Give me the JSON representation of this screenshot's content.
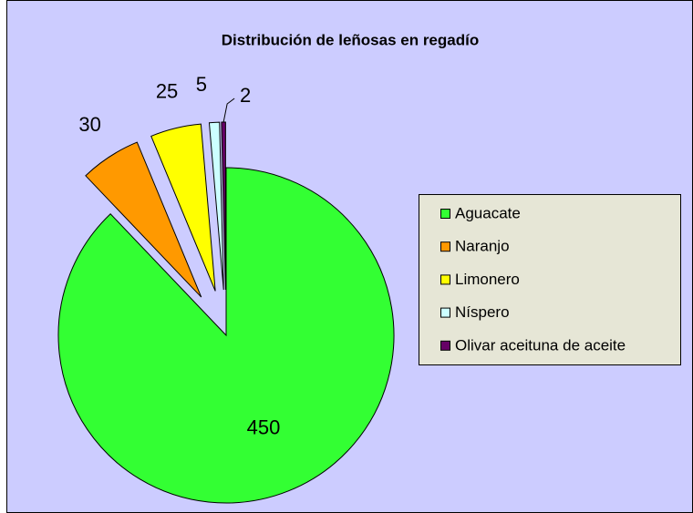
{
  "chart_data": {
    "type": "pie",
    "title": "Distribución de leñosas en regadío",
    "categories": [
      "Aguacate",
      "Naranjo",
      "Limonero",
      "Níspero",
      "Olivar aceituna de aceite"
    ],
    "values": [
      450,
      30,
      25,
      5,
      2
    ],
    "colors": [
      "#33ff33",
      "#ff9900",
      "#ffff00",
      "#ccffff",
      "#660066"
    ],
    "legend": "right"
  }
}
